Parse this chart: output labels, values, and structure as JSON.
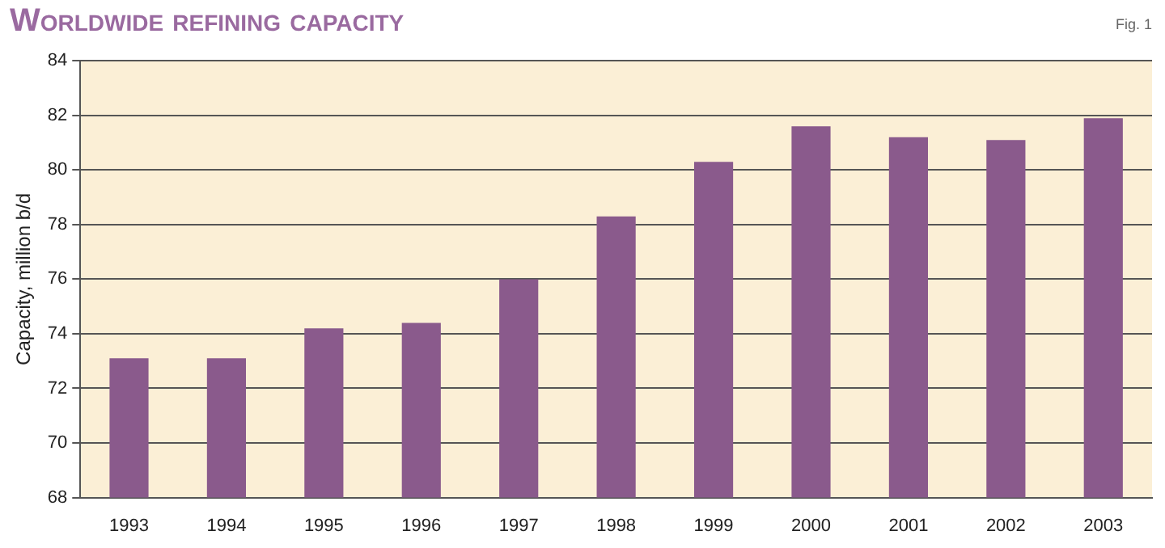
{
  "chart_data": {
    "type": "bar",
    "title": "Worldwide refining capacity",
    "ylabel": "Capacity, million b/d",
    "annotations": [
      "Fig. 1"
    ],
    "categories": [
      "1993",
      "1994",
      "1995",
      "1996",
      "1997",
      "1998",
      "1999",
      "2000",
      "2001",
      "2002",
      "2003"
    ],
    "values": [
      73.1,
      73.1,
      74.2,
      74.4,
      76.0,
      78.3,
      80.3,
      81.6,
      81.2,
      81.1,
      81.9
    ],
    "color": "#8a5a8c",
    "ylim": [
      68,
      84
    ],
    "yticks": [
      68,
      70,
      72,
      74,
      76,
      78,
      80,
      82,
      84
    ],
    "grid": "y",
    "legend": false
  }
}
